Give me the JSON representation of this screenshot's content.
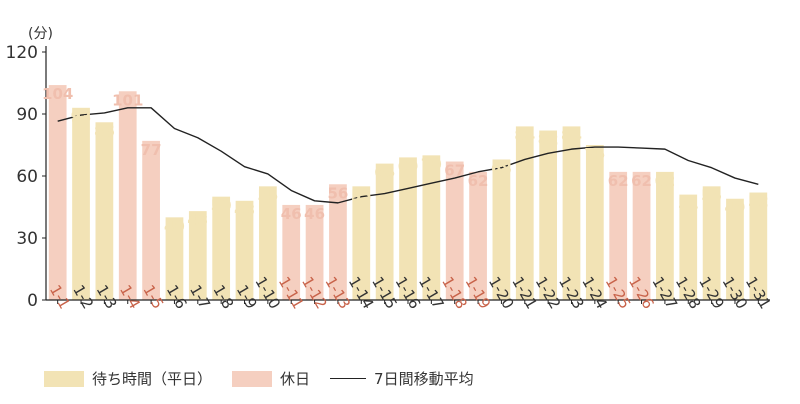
{
  "chart_data": {
    "type": "bar",
    "y_unit": "(分)",
    "ylim": [
      0,
      120
    ],
    "yticks": [
      0,
      30,
      60,
      90,
      120
    ],
    "grid": false,
    "legend_position": "bottom-left",
    "categories": [
      "1-1",
      "1-2",
      "1-3",
      "1-4",
      "1-5",
      "1-6",
      "1-7",
      "1-8",
      "1-9",
      "1-10",
      "1-11",
      "1-12",
      "1-13",
      "1-14",
      "1-15",
      "1-16",
      "1-17",
      "1-18",
      "1-19",
      "1-20",
      "1-21",
      "1-22",
      "1-23",
      "1-24",
      "1-25",
      "1-26",
      "1-27",
      "1-28",
      "1-29",
      "1-30",
      "1-31"
    ],
    "values": [
      104,
      93,
      86,
      101,
      77,
      40,
      43,
      50,
      48,
      55,
      46,
      46,
      56,
      55,
      66,
      69,
      70,
      67,
      62,
      68,
      84,
      82,
      84,
      75,
      62,
      62,
      62,
      51,
      55,
      49,
      52
    ],
    "holiday": [
      true,
      false,
      false,
      true,
      true,
      false,
      false,
      false,
      false,
      false,
      true,
      true,
      true,
      false,
      false,
      false,
      false,
      true,
      true,
      false,
      false,
      false,
      false,
      false,
      true,
      true,
      false,
      false,
      false,
      false,
      false
    ],
    "moving_average": [
      86.5,
      89.5,
      90.5,
      93,
      93,
      83,
      78.5,
      72,
      64.5,
      61,
      53,
      48,
      47,
      50,
      51.5,
      54,
      56.5,
      59,
      62,
      64,
      68,
      71,
      73,
      74,
      74,
      73.5,
      73,
      67.5,
      64,
      59,
      56
    ],
    "series": [
      {
        "name": "待ち時間（平日）",
        "color": "#f2e3b5"
      },
      {
        "name": "休日",
        "color": "#f5cfc0"
      },
      {
        "name": "7日間移動平均",
        "color": "#222222"
      }
    ],
    "colors": {
      "weekday_bar": "#f2e3b5",
      "holiday_bar": "#f5cfc0",
      "weekday_label": "#f2e3b5",
      "holiday_label": "#f0bfae",
      "weekday_tick": "#333333",
      "holiday_tick": "#c8634a",
      "axis": "#222222",
      "line": "#222222"
    }
  }
}
